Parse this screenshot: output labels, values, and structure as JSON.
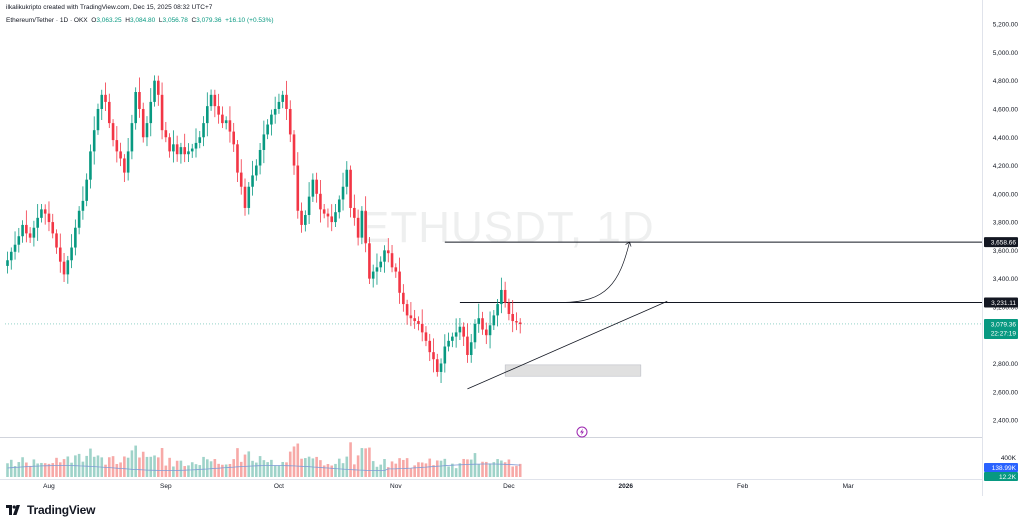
{
  "header": {
    "created_by": "ilkalikukripto created with TradingView.com, Dec 15, 2025 08:32 UTC+7",
    "symbol": "Ethereum/Tether · 1D · OKX",
    "o_label": "O",
    "o_value": "3,063.25",
    "h_label": "H",
    "h_value": "3,084.80",
    "l_label": "L",
    "l_value": "3,056.78",
    "c_label": "C",
    "c_value": "3,079.36",
    "change": "+16.10 (+0.53%)"
  },
  "watermark": "ETHUSDT, 1D",
  "brand": "TradingView",
  "colors": {
    "up": "#089981",
    "down": "#f23645",
    "vol_up": "#9fd3c9",
    "vol_down": "#f7a9a7",
    "line": "#131722",
    "last_price": "#089981",
    "zone": "#e0e0e0",
    "ma": "#7e9bd6"
  },
  "chart_data": {
    "type": "candlestick",
    "symbol": "ETHUSDT",
    "interval": "1D",
    "y_axis": {
      "ticks": [
        "5,200.00",
        "5,000.00",
        "4,800.00",
        "4,600.00",
        "4,400.00",
        "4,200.00",
        "4,000.00",
        "3,800.00",
        "3,600.00",
        "3,400.00",
        "3,200.00",
        "2,800.00",
        "2,600.00",
        "2,400.00"
      ],
      "tick_values": [
        5200,
        5000,
        4800,
        4600,
        4400,
        4200,
        4000,
        3800,
        3600,
        3400,
        3200,
        2800,
        2600,
        2400
      ],
      "range": [
        2280,
        5300
      ]
    },
    "x_axis": {
      "labels": [
        "Aug",
        "Sep",
        "Oct",
        "Nov",
        "Dec",
        "2026",
        "Feb",
        "Mar"
      ],
      "label_days": [
        11,
        42,
        72,
        103,
        133,
        164,
        195,
        223
      ]
    },
    "closes": [
      3530,
      3590,
      3640,
      3700,
      3780,
      3720,
      3690,
      3760,
      3830,
      3890,
      3860,
      3800,
      3720,
      3620,
      3520,
      3430,
      3530,
      3620,
      3760,
      3880,
      3950,
      4100,
      4300,
      4450,
      4600,
      4700,
      4650,
      4500,
      4380,
      4300,
      4250,
      4150,
      4300,
      4500,
      4720,
      4600,
      4400,
      4500,
      4650,
      4800,
      4700,
      4450,
      4400,
      4300,
      4350,
      4280,
      4330,
      4280,
      4300,
      4320,
      4360,
      4400,
      4500,
      4620,
      4700,
      4620,
      4560,
      4500,
      4520,
      4440,
      4350,
      4150,
      4050,
      3900,
      4050,
      4130,
      4200,
      4310,
      4420,
      4490,
      4560,
      4600,
      4650,
      4700,
      4600,
      4420,
      4200,
      3880,
      3780,
      3850,
      3980,
      4100,
      4000,
      3890,
      3860,
      3840,
      3800,
      3870,
      3960,
      4050,
      4170,
      3900,
      3830,
      3690,
      3880,
      3650,
      3400,
      3450,
      3480,
      3520,
      3600,
      3580,
      3480,
      3450,
      3300,
      3220,
      3140,
      3120,
      3100,
      3080,
      3020,
      2960,
      2880,
      2830,
      2740,
      2800,
      2920,
      2960,
      2990,
      3020,
      3060,
      2990,
      2860,
      2950,
      3080,
      3120,
      3040,
      3000,
      3070,
      3140,
      3220,
      3320,
      3230,
      3150,
      3100,
      3090,
      3079
    ],
    "volume_label_max": "400K",
    "volume_value": "138.99K",
    "volume_ma_value": "12.2K",
    "last_price": {
      "value": 3079.36,
      "label": "3,079.36",
      "countdown": "22:27:19"
    },
    "levels": [
      {
        "value": 3658.66,
        "label": "3,658.66"
      },
      {
        "value": 3231.11,
        "label": "3,231.11"
      }
    ],
    "trendline": {
      "from": {
        "day": 122,
        "price": 2620
      },
      "to": {
        "day": 175,
        "price": 3240
      }
    },
    "demand_zone": {
      "from_day": 132,
      "to_day": 168,
      "low": 2710,
      "high": 2790
    },
    "projection_arrow": {
      "from": {
        "day": 147,
        "price": 3231.11
      },
      "to": {
        "day": 165,
        "price": 3658.66
      }
    }
  }
}
